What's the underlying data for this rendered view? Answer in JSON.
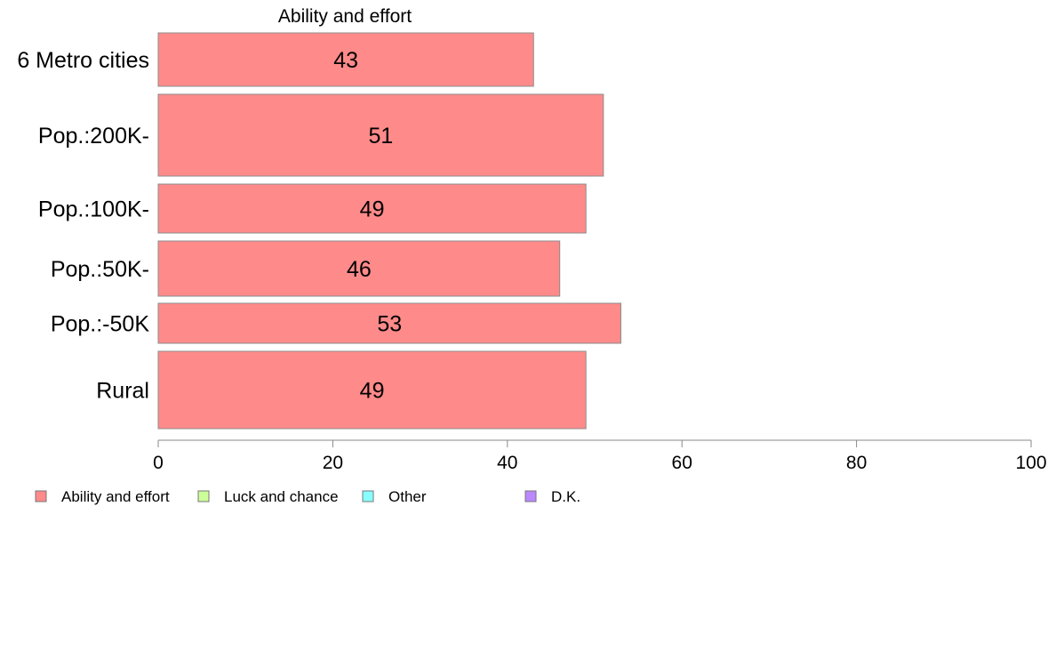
{
  "chart_data": {
    "type": "bar",
    "orientation": "horizontal",
    "title": "Ability and effort",
    "categories": [
      "6 Metro cities",
      "Pop.:200K-",
      "Pop.:100K-",
      "Pop.:50K-",
      "Pop.:-50K",
      "Rural"
    ],
    "series": [
      {
        "name": "Ability and effort",
        "values": [
          43,
          51,
          49,
          46,
          53,
          49
        ],
        "color": "#ff8a8a"
      }
    ],
    "xlim": [
      0,
      100
    ],
    "xticks": [
      "0",
      "20",
      "40",
      "60",
      "80",
      "100"
    ],
    "grid": false,
    "legend_position": "bottom-left",
    "legend": [
      {
        "label": "Ability and effort",
        "color": "#ff8a8a"
      },
      {
        "label": "Luck and chance",
        "color": "#ccff99"
      },
      {
        "label": "Other",
        "color": "#88ffff"
      },
      {
        "label": "D.K.",
        "color": "#bb88ff"
      }
    ]
  }
}
